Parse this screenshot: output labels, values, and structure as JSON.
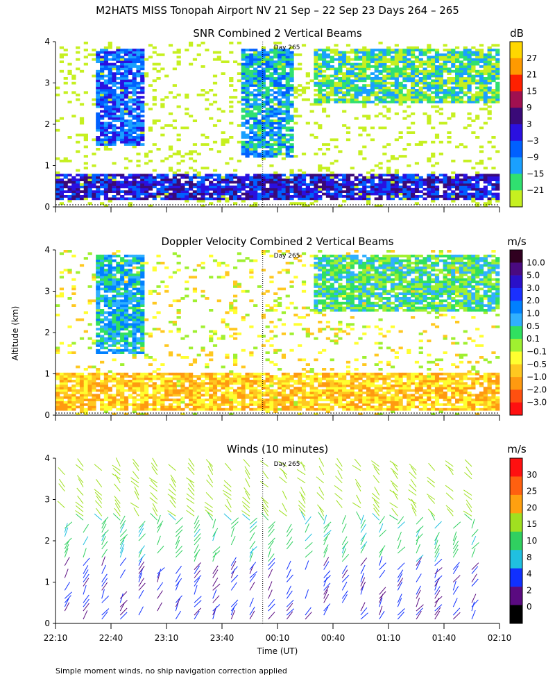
{
  "figure": {
    "main_title": "M2HATS MISS Tonopah Airport NV  21 Sep – 22 Sep 23 Days 264 – 265",
    "ylabel": "Altitude (km)",
    "xlabel": "Time (UT)",
    "footnote": "Simple moment winds, no ship navigation correction applied",
    "day_marker": "Day 265",
    "x_tick_labels": [
      "22:10",
      "22:40",
      "23:10",
      "23:40",
      "00:10",
      "00:40",
      "01:10",
      "01:40",
      "02:10"
    ]
  },
  "chart_data": [
    {
      "type": "heatmap",
      "title": "SNR Combined 2 Vertical Beams",
      "colorbar_unit": "dB",
      "colorbar_ticks": [
        "27",
        "21",
        "15",
        "9",
        "3",
        "−3",
        "−9",
        "−15",
        "−21"
      ],
      "colorbar_colors": [
        "#ffd700",
        "#ff9a00",
        "#ff2000",
        "#a01050",
        "#3a0a78",
        "#2a10e0",
        "#0060ff",
        "#1aa0ff",
        "#30e070",
        "#c6f020"
      ],
      "xlim_time": [
        "22:10",
        "02:10"
      ],
      "ylim": [
        0,
        4
      ],
      "y_ticks": [
        0,
        1,
        2,
        3,
        4
      ],
      "day_marker_time": "00:02",
      "features": [
        {
          "desc": "strong low layer",
          "alt_km": [
            0.15,
            0.8
          ],
          "snr_db": [
            -9,
            3
          ]
        },
        {
          "desc": "plume",
          "time": "22:45",
          "alt_km": [
            1.5,
            3.8
          ],
          "snr_db": [
            -9,
            -3
          ]
        },
        {
          "desc": "plume",
          "time": "00:05",
          "alt_km": [
            1.2,
            3.8
          ],
          "snr_db": [
            -15,
            -9
          ]
        },
        {
          "desc": "upper layer",
          "time_range": [
            "00:30",
            "02:10"
          ],
          "alt_km": [
            2.5,
            3.8
          ],
          "snr_db": [
            -21,
            -15
          ]
        }
      ]
    },
    {
      "type": "heatmap",
      "title": "Doppler Velocity Combined 2 Vertical Beams",
      "colorbar_unit": "m/s",
      "colorbar_ticks": [
        "10.0",
        "5.0",
        "3.0",
        "2.0",
        "1.0",
        "0.5",
        "0.1",
        "−0.1",
        "−0.5",
        "−1.0",
        "−2.0",
        "−3.0"
      ],
      "colorbar_colors": [
        "#300020",
        "#4a0a80",
        "#2a10c8",
        "#1a30ff",
        "#0080ff",
        "#30b0ff",
        "#30e060",
        "#a0f030",
        "#ffff30",
        "#ffc820",
        "#ff9a10",
        "#ff5010",
        "#ff1010"
      ],
      "xlim_time": [
        "22:10",
        "02:10"
      ],
      "ylim": [
        0,
        4
      ],
      "y_ticks": [
        0,
        1,
        2,
        3,
        4
      ],
      "day_marker_time": "00:02",
      "features": [
        {
          "desc": "boundary layer",
          "alt_km": [
            0.1,
            1.0
          ],
          "velocity_ms": [
            -1.0,
            -0.1
          ]
        },
        {
          "desc": "updraft column",
          "time": "22:45",
          "alt_km": [
            1.5,
            3.9
          ],
          "velocity_ms": [
            0.5,
            2.0
          ]
        },
        {
          "desc": "upper layer",
          "time_range": [
            "00:30",
            "02:10"
          ],
          "alt_km": [
            2.5,
            3.9
          ],
          "velocity_ms": [
            0.1,
            1.0
          ]
        }
      ]
    },
    {
      "type": "scatter",
      "title": "Winds (10 minutes)",
      "colorbar_unit": "m/s",
      "colorbar_ticks": [
        "30",
        "25",
        "20",
        "15",
        "10",
        "8",
        "4",
        "2",
        "0"
      ],
      "colorbar_colors": [
        "#ff1010",
        "#ff6010",
        "#ffa010",
        "#a0e020",
        "#30d060",
        "#20c0e0",
        "#1030ff",
        "#5a0a80",
        "#000000"
      ],
      "xlim_time": [
        "22:10",
        "02:10"
      ],
      "ylim": [
        0,
        4
      ],
      "y_ticks": [
        0,
        1,
        2,
        3,
        4
      ],
      "day_marker_time": "00:02",
      "features": [
        {
          "desc": "low-level barbs",
          "alt_km": [
            0.1,
            1.8
          ],
          "speed_ms": [
            2,
            8
          ]
        },
        {
          "desc": "mid-level barbs",
          "alt_km": [
            1.5,
            2.6
          ],
          "speed_ms": [
            8,
            15
          ]
        },
        {
          "desc": "upper barbs",
          "alt_km": [
            2.6,
            3.9
          ],
          "speed_ms": [
            15,
            20
          ]
        }
      ]
    }
  ]
}
